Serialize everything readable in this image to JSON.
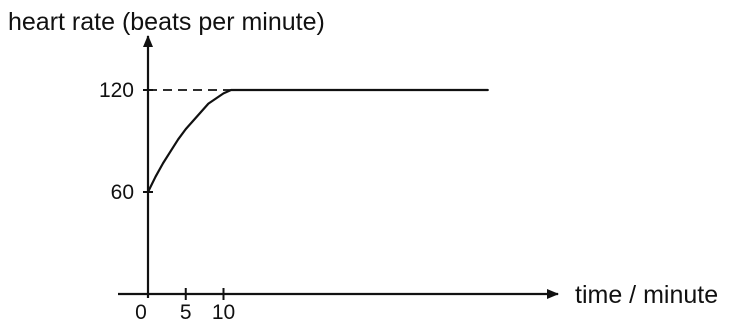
{
  "chart_data": {
    "type": "line",
    "title": "",
    "ylabel": "heart rate (beats per minute)",
    "xlabel": "time / minute",
    "x_ticks": [
      0,
      5,
      10
    ],
    "y_ticks": [
      60,
      120
    ],
    "xlim": [
      0,
      50
    ],
    "ylim": [
      0,
      150
    ],
    "grid": false,
    "reference_line": {
      "y": 120,
      "style": "dashed"
    },
    "series": [
      {
        "x": [
          0,
          1,
          2,
          3,
          4,
          5,
          6,
          7,
          8,
          9,
          10,
          11,
          15,
          20,
          25,
          30,
          35,
          40,
          45
        ],
        "values": [
          60,
          69,
          77,
          84,
          91,
          97,
          102,
          107,
          112,
          115,
          118,
          120,
          120,
          120,
          120,
          120,
          120,
          120,
          120
        ]
      }
    ]
  }
}
